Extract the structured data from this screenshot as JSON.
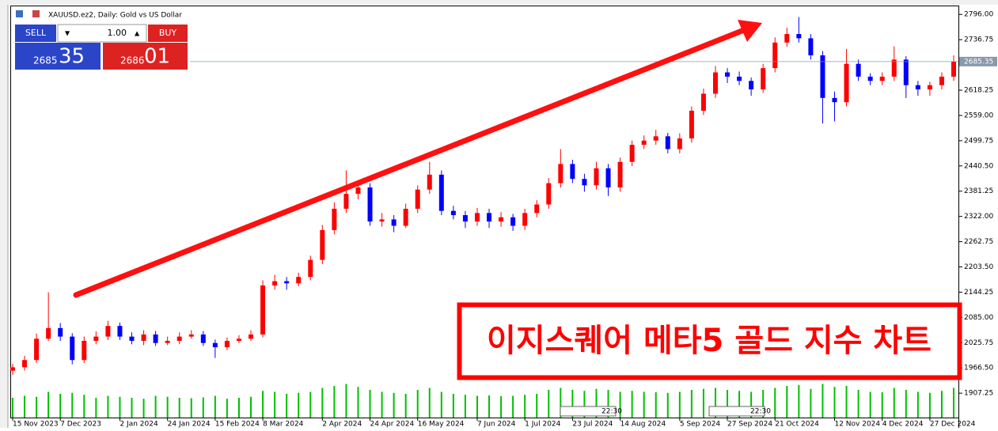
{
  "chart_data": {
    "type": "candlestick",
    "title": "XAUUSD.ez2, Daily:  Gold vs US Dollar",
    "annotation": "이지스퀘어 메타5 골드 지수 차트",
    "up_color": "#ff0000",
    "down_color": "#0000ff",
    "volume_color": "#00c000",
    "categories": [
      "15 Nov 2023",
      null,
      null,
      null,
      "7 Dec 2023",
      null,
      null,
      null,
      null,
      "2 Jan 2024",
      null,
      null,
      null,
      "24 Jan 2024",
      null,
      null,
      null,
      "15 Feb 2024",
      null,
      null,
      null,
      "8 Mar 2024",
      null,
      null,
      null,
      null,
      "2 Apr 2024",
      null,
      null,
      null,
      "24 Apr 2024",
      null,
      null,
      null,
      "16 May 2024",
      null,
      null,
      null,
      null,
      "7 Jun 2024",
      null,
      null,
      null,
      "1 Jul 2024",
      null,
      null,
      null,
      "23 Jul 2024",
      null,
      null,
      null,
      "14 Aug 2024",
      null,
      null,
      null,
      null,
      "5 Sep 2024",
      null,
      null,
      null,
      "27 Sep 2024",
      null,
      null,
      null,
      "21 Oct 2024",
      null,
      null,
      null,
      null,
      "12 Nov 2024",
      null,
      null,
      null,
      "4 Dec 2024",
      null,
      null,
      null,
      "27 Dec 2024",
      null,
      null
    ],
    "open": [
      1960,
      1968,
      1985,
      2035,
      2060,
      2040,
      1985,
      2030,
      2040,
      2065,
      2040,
      2030,
      2045,
      2025,
      2030,
      2040,
      2045,
      2025,
      2015,
      2030,
      2035,
      2045,
      2160,
      2170,
      2165,
      2180,
      2220,
      2290,
      2340,
      2375,
      2390,
      2310,
      2315,
      2300,
      2340,
      2385,
      2420,
      2335,
      2325,
      2310,
      2330,
      2310,
      2320,
      2300,
      2330,
      2350,
      2400,
      2445,
      2410,
      2395,
      2435,
      2390,
      2450,
      2490,
      2500,
      2510,
      2480,
      2505,
      2570,
      2610,
      2660,
      2650,
      2640,
      2620,
      2670,
      2730,
      2750,
      2740,
      2700,
      2600,
      2590,
      2680,
      2650,
      2640,
      2650,
      2690,
      2630,
      2620,
      2630,
      2650
    ],
    "high": [
      1976,
      1995,
      2047,
      2144,
      2072,
      2048,
      2040,
      2052,
      2077,
      2073,
      2050,
      2055,
      2053,
      2040,
      2050,
      2055,
      2053,
      2033,
      2038,
      2043,
      2055,
      2172,
      2185,
      2180,
      2190,
      2230,
      2302,
      2355,
      2430,
      2405,
      2400,
      2330,
      2325,
      2352,
      2395,
      2450,
      2430,
      2347,
      2335,
      2342,
      2340,
      2332,
      2328,
      2340,
      2360,
      2412,
      2480,
      2455,
      2422,
      2450,
      2445,
      2460,
      2500,
      2512,
      2525,
      2518,
      2517,
      2580,
      2622,
      2675,
      2670,
      2662,
      2648,
      2680,
      2742,
      2765,
      2790,
      2750,
      2710,
      2615,
      2715,
      2690,
      2658,
      2660,
      2721,
      2698,
      2640,
      2638,
      2660,
      2700
    ],
    "low": [
      1950,
      1960,
      1978,
      2030,
      2030,
      1975,
      1978,
      2022,
      2032,
      2032,
      2022,
      2020,
      2018,
      2020,
      2022,
      2035,
      2018,
      1990,
      2008,
      2025,
      2030,
      2038,
      2150,
      2150,
      2158,
      2172,
      2210,
      2280,
      2330,
      2362,
      2300,
      2298,
      2285,
      2295,
      2330,
      2375,
      2325,
      2315,
      2295,
      2300,
      2295,
      2298,
      2288,
      2290,
      2320,
      2340,
      2390,
      2400,
      2380,
      2385,
      2370,
      2380,
      2440,
      2480,
      2490,
      2470,
      2470,
      2495,
      2560,
      2600,
      2635,
      2630,
      2605,
      2612,
      2660,
      2720,
      2730,
      2690,
      2540,
      2545,
      2580,
      2640,
      2630,
      2630,
      2640,
      2600,
      2605,
      2605,
      2620,
      2640
    ],
    "close": [
      1968,
      1985,
      2035,
      2060,
      2040,
      1985,
      2030,
      2040,
      2065,
      2040,
      2030,
      2045,
      2025,
      2030,
      2040,
      2045,
      2025,
      2015,
      2030,
      2035,
      2045,
      2160,
      2170,
      2165,
      2180,
      2220,
      2290,
      2340,
      2375,
      2390,
      2310,
      2315,
      2300,
      2340,
      2385,
      2420,
      2335,
      2325,
      2310,
      2330,
      2310,
      2320,
      2300,
      2330,
      2350,
      2400,
      2445,
      2410,
      2395,
      2435,
      2390,
      2450,
      2490,
      2500,
      2510,
      2480,
      2505,
      2570,
      2610,
      2660,
      2650,
      2640,
      2620,
      2670,
      2730,
      2750,
      2740,
      2700,
      2600,
      2590,
      2680,
      2650,
      2640,
      2650,
      2690,
      2630,
      2620,
      2630,
      2650,
      2685.35
    ],
    "volume": [
      100000,
      110000,
      105000,
      130000,
      120000,
      125000,
      115000,
      100000,
      110000,
      105000,
      100000,
      95000,
      110000,
      105000,
      100000,
      98000,
      102000,
      110000,
      95000,
      100000,
      105000,
      135000,
      130000,
      120000,
      125000,
      130000,
      150000,
      160000,
      170000,
      155000,
      140000,
      130000,
      125000,
      120000,
      140000,
      150000,
      130000,
      120000,
      115000,
      110000,
      112000,
      108000,
      110000,
      115000,
      120000,
      140000,
      150000,
      140000,
      135000,
      145000,
      140000,
      130000,
      135000,
      130000,
      128000,
      125000,
      130000,
      140000,
      145000,
      150000,
      140000,
      135000,
      130000,
      140000,
      150000,
      160000,
      165000,
      145000,
      170000,
      155000,
      160000,
      140000,
      130000,
      128000,
      150000,
      140000,
      130000,
      125000,
      135000,
      150000
    ],
    "ylim": [
      1850,
      2815
    ],
    "volume_lim": [
      0,
      200000
    ],
    "yticks": [
      {
        "value": 2796,
        "label": "2796.00"
      },
      {
        "value": 2736.75,
        "label": "2736.75"
      },
      {
        "value": 2618.25,
        "label": "2618.25"
      },
      {
        "value": 2559,
        "label": "2559.00"
      },
      {
        "value": 2499.75,
        "label": "2499.75"
      },
      {
        "value": 2440.5,
        "label": "2440.50"
      },
      {
        "value": 2381.25,
        "label": "2381.25"
      },
      {
        "value": 2322,
        "label": "2322.00"
      },
      {
        "value": 2262.75,
        "label": "2262.75"
      },
      {
        "value": 2203.5,
        "label": "2203.50"
      },
      {
        "value": 2144.25,
        "label": "2144.25"
      },
      {
        "value": 2085,
        "label": "2085.00"
      },
      {
        "value": 2025.75,
        "label": "2025.75"
      },
      {
        "value": 1966.5,
        "label": "1966.50"
      },
      {
        "value": 1907.25,
        "label": "1907.25"
      }
    ],
    "last_price": {
      "value": 2685.35,
      "label": "2685.35"
    },
    "event_labels": [
      "22:30",
      "22:30"
    ]
  },
  "trade_panel": {
    "sell": "SELL",
    "buy": "BUY",
    "lot": "1.00",
    "bid_main": "2685",
    "bid_frac": "35",
    "ask_main": "2686",
    "ask_frac": "01"
  }
}
